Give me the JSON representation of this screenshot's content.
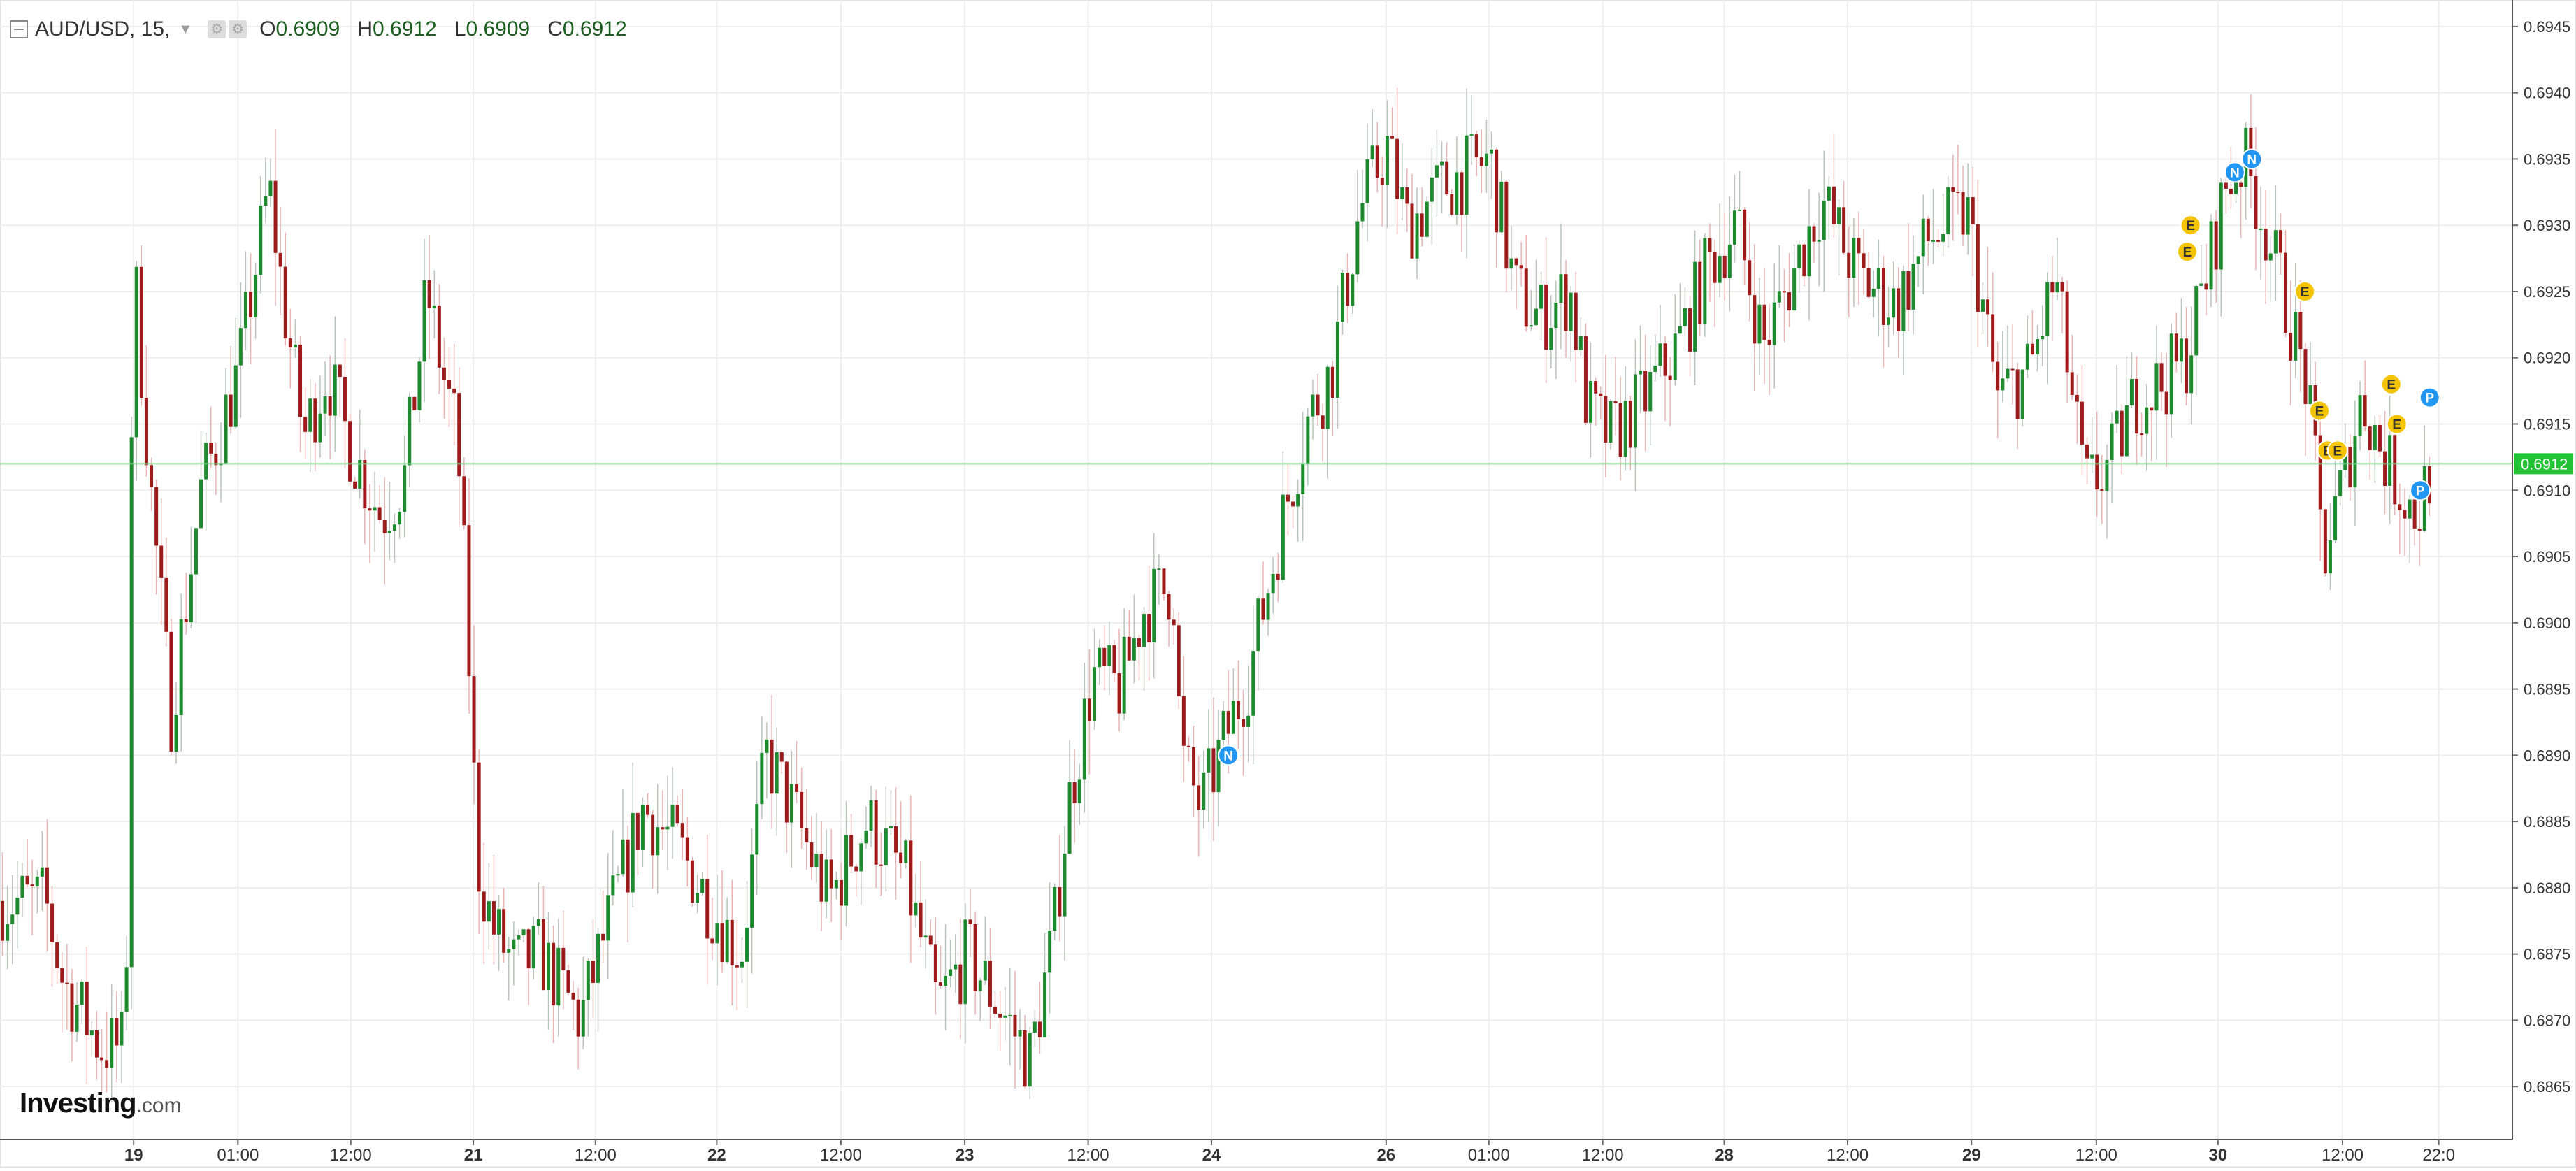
{
  "header": {
    "symbol": "AUD/USD, 15,",
    "open_label": "O",
    "open": "0.6909",
    "high_label": "H",
    "high": "0.6912",
    "low_label": "L",
    "low": "0.6909",
    "close_label": "C",
    "close": "0.6912"
  },
  "logo": {
    "name": "Investing",
    "suffix": ".com"
  },
  "colors": {
    "up": "#1e8a2e",
    "down": "#9e1b1b",
    "wick": "#9aa0a6",
    "price_line": "#7bd88f",
    "price_tag": "#21c233",
    "grid": "#eeeeee",
    "event_e": "#f5c400",
    "event_np": "#2196f3"
  },
  "chart_data": {
    "type": "candlestick",
    "title": "AUD/USD, 15",
    "timeframe": "15",
    "ylim": [
      0.6861,
      0.6947
    ],
    "y_ticks": [
      "0.6865",
      "0.6870",
      "0.6875",
      "0.6880",
      "0.6885",
      "0.6890",
      "0.6895",
      "0.6900",
      "0.6905",
      "0.6910",
      "0.6915",
      "0.6920",
      "0.6925",
      "0.6930",
      "0.6935",
      "0.6940",
      "0.6945"
    ],
    "y_tick_values": [
      0.6865,
      0.687,
      0.6875,
      0.688,
      0.6885,
      0.689,
      0.6895,
      0.69,
      0.6905,
      0.691,
      0.6915,
      0.692,
      0.6925,
      0.693,
      0.6935,
      0.694,
      0.6945
    ],
    "x_ticks": [
      "19",
      "01:00",
      "12:00",
      "21",
      "12:00",
      "22",
      "12:00",
      "23",
      "12:00",
      "24",
      "26",
      "01:00",
      "12:00",
      "28",
      "12:00",
      "29",
      "12:00",
      "30",
      "12:00",
      "22:0"
    ],
    "x_tick_bold": [
      true,
      false,
      false,
      true,
      false,
      true,
      false,
      true,
      false,
      true,
      true,
      false,
      false,
      true,
      false,
      true,
      false,
      true,
      false,
      false
    ],
    "x_tick_pos": [
      0.0532,
      0.0947,
      0.1396,
      0.1884,
      0.237,
      0.2853,
      0.3347,
      0.384,
      0.4331,
      0.4822,
      0.5517,
      0.5926,
      0.6379,
      0.6863,
      0.7354,
      0.7847,
      0.8344,
      0.8828,
      0.9324,
      0.9707
    ],
    "current_price": 0.6912,
    "current_price_label": "0.6912",
    "path": [
      [
        0.0,
        0.6879
      ],
      [
        0.018,
        0.6879
      ],
      [
        0.025,
        0.6873
      ],
      [
        0.04,
        0.6868
      ],
      [
        0.05,
        0.6868
      ],
      [
        0.053,
        0.6928
      ],
      [
        0.06,
        0.691
      ],
      [
        0.068,
        0.6893
      ],
      [
        0.08,
        0.691
      ],
      [
        0.095,
        0.6919
      ],
      [
        0.107,
        0.6933
      ],
      [
        0.113,
        0.6924
      ],
      [
        0.121,
        0.6914
      ],
      [
        0.13,
        0.6919
      ],
      [
        0.14,
        0.6913
      ],
      [
        0.152,
        0.6908
      ],
      [
        0.161,
        0.6911
      ],
      [
        0.17,
        0.6925
      ],
      [
        0.176,
        0.6919
      ],
      [
        0.182,
        0.6914
      ],
      [
        0.186,
        0.69
      ],
      [
        0.19,
        0.6882
      ],
      [
        0.196,
        0.6877
      ],
      [
        0.205,
        0.6874
      ],
      [
        0.215,
        0.6875
      ],
      [
        0.231,
        0.687
      ],
      [
        0.24,
        0.6876
      ],
      [
        0.256,
        0.6886
      ],
      [
        0.27,
        0.6883
      ],
      [
        0.282,
        0.6879
      ],
      [
        0.295,
        0.6875
      ],
      [
        0.305,
        0.689
      ],
      [
        0.315,
        0.6886
      ],
      [
        0.33,
        0.6879
      ],
      [
        0.345,
        0.6885
      ],
      [
        0.36,
        0.6881
      ],
      [
        0.373,
        0.6871
      ],
      [
        0.385,
        0.6875
      ],
      [
        0.398,
        0.6871
      ],
      [
        0.41,
        0.6867
      ],
      [
        0.419,
        0.6876
      ],
      [
        0.425,
        0.6886
      ],
      [
        0.435,
        0.6896
      ],
      [
        0.446,
        0.6895
      ],
      [
        0.455,
        0.6901
      ],
      [
        0.467,
        0.6903
      ],
      [
        0.47,
        0.689
      ],
      [
        0.478,
        0.6886
      ],
      [
        0.487,
        0.6891
      ],
      [
        0.497,
        0.6896
      ],
      [
        0.505,
        0.6903
      ],
      [
        0.512,
        0.6909
      ],
      [
        0.52,
        0.6915
      ],
      [
        0.53,
        0.6919
      ],
      [
        0.541,
        0.6931
      ],
      [
        0.552,
        0.6936
      ],
      [
        0.56,
        0.693
      ],
      [
        0.575,
        0.6933
      ],
      [
        0.593,
        0.6935
      ],
      [
        0.6,
        0.6928
      ],
      [
        0.603,
        0.6925
      ],
      [
        0.613,
        0.6923
      ],
      [
        0.625,
        0.6925
      ],
      [
        0.632,
        0.6916
      ],
      [
        0.641,
        0.6914
      ],
      [
        0.655,
        0.6917
      ],
      [
        0.668,
        0.6921
      ],
      [
        0.68,
        0.6927
      ],
      [
        0.691,
        0.693
      ],
      [
        0.702,
        0.6921
      ],
      [
        0.713,
        0.6926
      ],
      [
        0.725,
        0.6932
      ],
      [
        0.74,
        0.6926
      ],
      [
        0.755,
        0.6924
      ],
      [
        0.768,
        0.6929
      ],
      [
        0.783,
        0.6931
      ],
      [
        0.795,
        0.6917
      ],
      [
        0.808,
        0.6919
      ],
      [
        0.818,
        0.6926
      ],
      [
        0.83,
        0.691
      ],
      [
        0.84,
        0.6912
      ],
      [
        0.85,
        0.6917
      ],
      [
        0.86,
        0.6918
      ],
      [
        0.87,
        0.692
      ],
      [
        0.878,
        0.6926
      ],
      [
        0.886,
        0.6933
      ],
      [
        0.893,
        0.6935
      ],
      [
        0.9,
        0.6931
      ],
      [
        0.91,
        0.6924
      ],
      [
        0.918,
        0.6918
      ],
      [
        0.925,
        0.6905
      ],
      [
        0.933,
        0.6911
      ],
      [
        0.94,
        0.6917
      ],
      [
        0.95,
        0.6912
      ],
      [
        0.962,
        0.6908
      ],
      [
        0.968,
        0.6912
      ]
    ],
    "events": [
      {
        "label": "N",
        "x": 0.4889,
        "y": 0.689
      },
      {
        "label": "E",
        "x": 0.8719,
        "y": 0.693
      },
      {
        "label": "E",
        "x": 0.8706,
        "y": 0.6928
      },
      {
        "label": "N",
        "x": 0.8895,
        "y": 0.6934
      },
      {
        "label": "N",
        "x": 0.8963,
        "y": 0.6935
      },
      {
        "label": "E",
        "x": 0.9174,
        "y": 0.6925
      },
      {
        "label": "E",
        "x": 0.9232,
        "y": 0.6916
      },
      {
        "label": "E",
        "x": 0.9264,
        "y": 0.6913
      },
      {
        "label": "E",
        "x": 0.9304,
        "y": 0.6913
      },
      {
        "label": "E",
        "x": 0.9518,
        "y": 0.6918
      },
      {
        "label": "E",
        "x": 0.954,
        "y": 0.6915
      },
      {
        "label": "P",
        "x": 0.9671,
        "y": 0.6917
      },
      {
        "label": "P",
        "x": 0.9633,
        "y": 0.691
      }
    ]
  }
}
